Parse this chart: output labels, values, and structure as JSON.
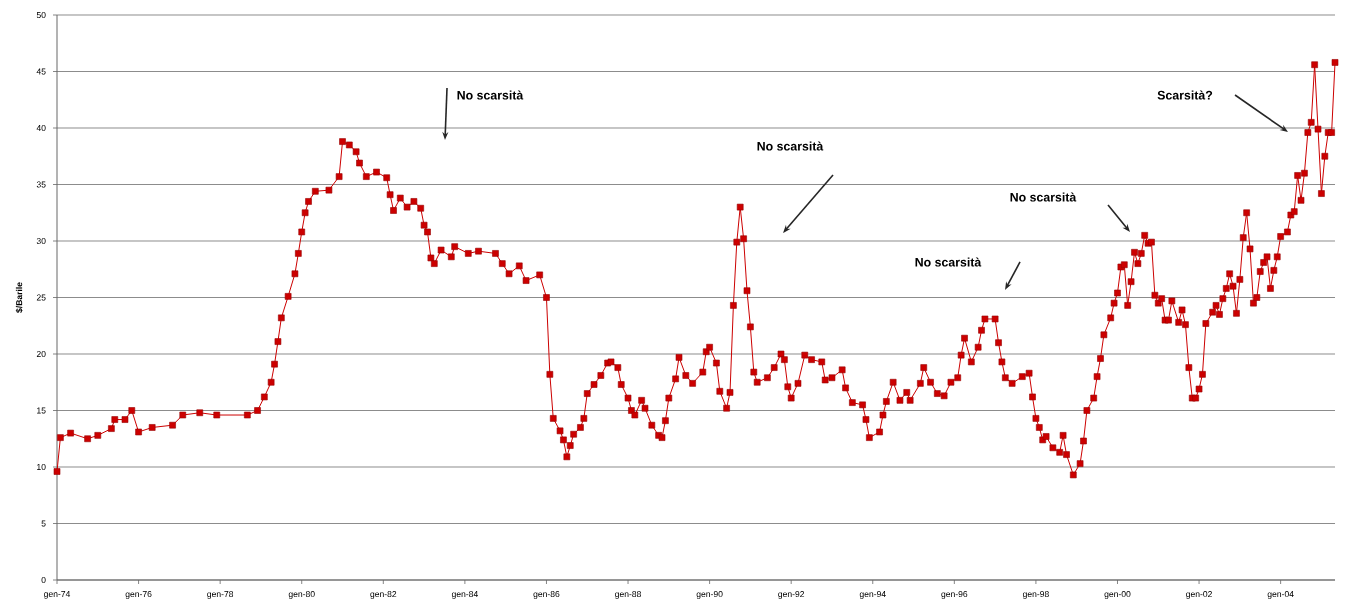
{
  "chart_data": {
    "type": "line",
    "ylabel": "$/Barile",
    "color": "#cc0000",
    "marker": "square",
    "grid": "y",
    "x": [
      "1974-01",
      "1974-02",
      "1974-05",
      "1974-10",
      "1975-01",
      "1975-05",
      "1975-06",
      "1975-09",
      "1975-11",
      "1976-01",
      "1976-05",
      "1976-11",
      "1977-02",
      "1977-07",
      "1977-12",
      "1978-09",
      "1978-12",
      "1979-02",
      "1979-04",
      "1979-05",
      "1979-06",
      "1979-07",
      "1979-09",
      "1979-11",
      "1979-12",
      "1980-01",
      "1980-02",
      "1980-03",
      "1980-05",
      "1980-09",
      "1980-12",
      "1981-01",
      "1981-03",
      "1981-05",
      "1981-06",
      "1981-08",
      "1981-11",
      "1982-02",
      "1982-03",
      "1982-04",
      "1982-06",
      "1982-08",
      "1982-10",
      "1982-12",
      "1983-01",
      "1983-02",
      "1983-03",
      "1983-04",
      "1983-06",
      "1983-09",
      "1983-10",
      "1984-02",
      "1984-05",
      "1984-10",
      "1984-12",
      "1985-02",
      "1985-05",
      "1985-07",
      "1985-11",
      "1986-01",
      "1986-02",
      "1986-03",
      "1986-05",
      "1986-06",
      "1986-07",
      "1986-08",
      "1986-09",
      "1986-11",
      "1986-12",
      "1987-01",
      "1987-03",
      "1987-05",
      "1987-07",
      "1987-08",
      "1987-10",
      "1987-11",
      "1988-01",
      "1988-02",
      "1988-03",
      "1988-05",
      "1988-06",
      "1988-08",
      "1988-10",
      "1988-11",
      "1988-12",
      "1989-01",
      "1989-03",
      "1989-04",
      "1989-06",
      "1989-08",
      "1989-11",
      "1989-12",
      "1990-01",
      "1990-03",
      "1990-04",
      "1990-06",
      "1990-07",
      "1990-08",
      "1990-09",
      "1990-10",
      "1990-11",
      "1990-12",
      "1991-01",
      "1991-02",
      "1991-03",
      "1991-06",
      "1991-08",
      "1991-10",
      "1991-11",
      "1991-12",
      "1992-01",
      "1992-03",
      "1992-05",
      "1992-07",
      "1992-10",
      "1992-11",
      "1993-01",
      "1993-04",
      "1993-05",
      "1993-07",
      "1993-10",
      "1993-11",
      "1993-12",
      "1994-03",
      "1994-04",
      "1994-05",
      "1994-07",
      "1994-09",
      "1994-11",
      "1994-12",
      "1995-03",
      "1995-04",
      "1995-06",
      "1995-08",
      "1995-10",
      "1995-12",
      "1996-02",
      "1996-03",
      "1996-04",
      "1996-06",
      "1996-08",
      "1996-09",
      "1996-10",
      "1997-01",
      "1997-02",
      "1997-03",
      "1997-04",
      "1997-06",
      "1997-09",
      "1997-11",
      "1997-12",
      "1998-01",
      "1998-02",
      "1998-03",
      "1998-04",
      "1998-06",
      "1998-08",
      "1998-09",
      "1998-10",
      "1998-12",
      "1999-02",
      "1999-03",
      "1999-04",
      "1999-06",
      "1999-07",
      "1999-08",
      "1999-09",
      "1999-11",
      "1999-12",
      "2000-01",
      "2000-02",
      "2000-03",
      "2000-04",
      "2000-05",
      "2000-06",
      "2000-07",
      "2000-08",
      "2000-09",
      "2000-10",
      "2000-11",
      "2000-12",
      "2001-01",
      "2001-02",
      "2001-03",
      "2001-04",
      "2001-05",
      "2001-07",
      "2001-08",
      "2001-09",
      "2001-10",
      "2001-11",
      "2001-12",
      "2002-01",
      "2002-02",
      "2002-03",
      "2002-05",
      "2002-06",
      "2002-07",
      "2002-08",
      "2002-09",
      "2002-10",
      "2002-11",
      "2002-12",
      "2003-01",
      "2003-02",
      "2003-03",
      "2003-04",
      "2003-05",
      "2003-06",
      "2003-07",
      "2003-08",
      "2003-09",
      "2003-10",
      "2003-11",
      "2003-12",
      "2004-01",
      "2004-03",
      "2004-04",
      "2004-05",
      "2004-06",
      "2004-07",
      "2004-08",
      "2004-09",
      "2004-10",
      "2004-11",
      "2004-12",
      "2005-01",
      "2005-02",
      "2005-03",
      "2005-04",
      "2005-05"
    ],
    "values": [
      9.6,
      12.6,
      13.0,
      12.5,
      12.8,
      13.4,
      14.2,
      14.2,
      15.0,
      13.1,
      13.5,
      13.7,
      14.6,
      14.8,
      14.6,
      14.6,
      15.0,
      16.2,
      17.5,
      19.1,
      21.1,
      23.2,
      25.1,
      27.1,
      28.9,
      30.8,
      32.5,
      33.5,
      34.4,
      34.5,
      35.7,
      38.8,
      38.5,
      37.9,
      36.9,
      35.7,
      36.1,
      35.6,
      34.1,
      32.7,
      33.8,
      33.0,
      33.5,
      32.9,
      31.4,
      30.8,
      28.5,
      28.0,
      29.2,
      28.6,
      29.5,
      28.9,
      29.1,
      28.9,
      28.0,
      27.1,
      27.8,
      26.5,
      27.0,
      25.0,
      18.2,
      14.3,
      13.2,
      12.4,
      10.9,
      11.9,
      12.9,
      13.5,
      14.3,
      16.5,
      17.3,
      18.1,
      19.2,
      19.3,
      18.8,
      17.3,
      16.1,
      15.0,
      14.6,
      15.9,
      15.2,
      13.7,
      12.8,
      12.6,
      14.1,
      16.1,
      17.8,
      19.7,
      18.1,
      17.4,
      18.4,
      20.2,
      20.6,
      19.2,
      16.7,
      15.2,
      16.6,
      24.3,
      29.9,
      33.0,
      30.2,
      25.6,
      22.4,
      18.4,
      17.5,
      17.9,
      18.8,
      20.0,
      19.5,
      17.1,
      16.1,
      17.4,
      19.9,
      19.5,
      19.3,
      17.7,
      17.9,
      18.6,
      17.0,
      15.7,
      15.5,
      14.2,
      12.6,
      13.1,
      14.6,
      15.8,
      17.5,
      15.9,
      16.6,
      15.9,
      17.4,
      18.8,
      17.5,
      16.5,
      16.3,
      17.5,
      17.9,
      19.9,
      21.4,
      19.3,
      20.6,
      22.1,
      23.1,
      23.1,
      21.0,
      19.3,
      17.9,
      17.4,
      18.0,
      18.3,
      16.2,
      14.3,
      13.5,
      12.4,
      12.7,
      11.7,
      11.3,
      12.8,
      11.1,
      9.3,
      10.3,
      12.3,
      15.0,
      16.1,
      18.0,
      19.6,
      21.7,
      23.2,
      24.5,
      25.4,
      27.7,
      27.9,
      24.3,
      26.4,
      29.0,
      28.0,
      28.9,
      30.5,
      29.8,
      29.9,
      25.2,
      24.5,
      24.9,
      23.0,
      23.0,
      24.7,
      22.8,
      23.9,
      22.6,
      18.8,
      16.1,
      16.1,
      16.9,
      18.2,
      22.7,
      23.7,
      24.3,
      23.5,
      24.9,
      25.8,
      27.1,
      26.0,
      23.6,
      26.6,
      30.3,
      32.5,
      29.3,
      24.5,
      25.0,
      27.3,
      28.1,
      28.6,
      25.8,
      27.4,
      28.6,
      30.4,
      30.8,
      32.3,
      32.6,
      35.8,
      33.6,
      36.0,
      39.6,
      40.5,
      45.6,
      39.9,
      34.2,
      37.5,
      39.6,
      39.6,
      45.8
    ],
    "xlim": [
      "1974-01",
      "2005-05"
    ],
    "xticks": [
      {
        "value": "1974-01",
        "label": "gen-74"
      },
      {
        "value": "1976-01",
        "label": "gen-76"
      },
      {
        "value": "1978-01",
        "label": "gen-78"
      },
      {
        "value": "1980-01",
        "label": "gen-80"
      },
      {
        "value": "1982-01",
        "label": "gen-82"
      },
      {
        "value": "1984-01",
        "label": "gen-84"
      },
      {
        "value": "1986-01",
        "label": "gen-86"
      },
      {
        "value": "1988-01",
        "label": "gen-88"
      },
      {
        "value": "1990-01",
        "label": "gen-90"
      },
      {
        "value": "1992-01",
        "label": "gen-92"
      },
      {
        "value": "1994-01",
        "label": "gen-94"
      },
      {
        "value": "1996-01",
        "label": "gen-96"
      },
      {
        "value": "1998-01",
        "label": "gen-98"
      },
      {
        "value": "2000-01",
        "label": "gen-00"
      },
      {
        "value": "2002-01",
        "label": "gen-02"
      },
      {
        "value": "2004-01",
        "label": "gen-04"
      }
    ],
    "ylim": [
      0,
      50
    ],
    "yticks": [
      0,
      5,
      10,
      15,
      20,
      25,
      30,
      35,
      40,
      45,
      50
    ],
    "annotations": [
      "No scarsità",
      "No scarsità",
      "No scarsità",
      "No scarsità",
      "Scarsità?"
    ]
  }
}
